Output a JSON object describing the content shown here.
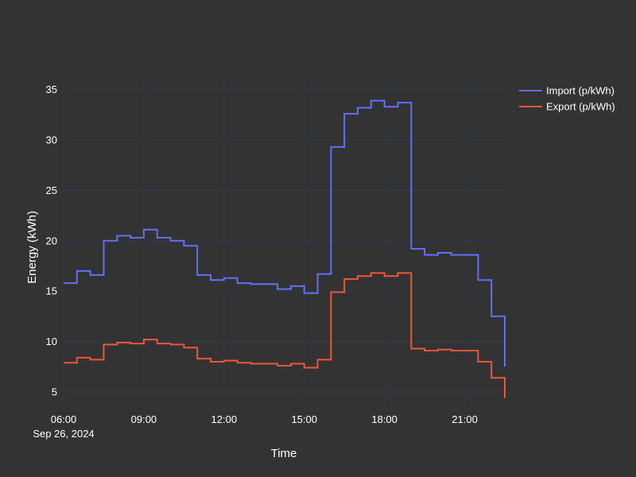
{
  "chart_data": {
    "type": "line",
    "line_shape": "step",
    "xlabel": "Time",
    "ylabel": "Energy (kWh)",
    "x_range": [
      "2024-09-26 06:00",
      "2024-09-26 22:30"
    ],
    "ylim": [
      3.5,
      36
    ],
    "x_ticks": [
      {
        "t": "2024-09-26 06:00",
        "label": "06:00",
        "sublabel": "Sep 26, 2024"
      },
      {
        "t": "2024-09-26 09:00",
        "label": "09:00"
      },
      {
        "t": "2024-09-26 12:00",
        "label": "12:00"
      },
      {
        "t": "2024-09-26 15:00",
        "label": "15:00"
      },
      {
        "t": "2024-09-26 18:00",
        "label": "18:00"
      },
      {
        "t": "2024-09-26 21:00",
        "label": "21:00"
      }
    ],
    "y_ticks": [
      5,
      10,
      15,
      20,
      25,
      30,
      35
    ],
    "grid": true,
    "legend": "top-right",
    "x": [
      "06:00",
      "06:30",
      "07:00",
      "07:30",
      "08:00",
      "08:30",
      "09:00",
      "09:30",
      "10:00",
      "10:30",
      "11:00",
      "11:30",
      "12:00",
      "12:30",
      "13:00",
      "13:30",
      "14:00",
      "14:30",
      "15:00",
      "15:30",
      "16:00",
      "16:30",
      "17:00",
      "17:30",
      "18:00",
      "18:30",
      "19:00",
      "19:30",
      "20:00",
      "20:30",
      "21:00",
      "21:30",
      "22:00",
      "22:30"
    ],
    "series": [
      {
        "name": "Import (p/kWh)",
        "color": "#636efa",
        "values": [
          15.8,
          17.0,
          16.6,
          20.0,
          20.5,
          20.3,
          21.1,
          20.3,
          20.0,
          19.5,
          16.6,
          16.1,
          16.3,
          15.8,
          15.7,
          15.7,
          15.2,
          15.5,
          14.8,
          16.7,
          29.3,
          32.6,
          33.2,
          33.9,
          33.3,
          33.7,
          19.2,
          18.6,
          18.8,
          18.6,
          18.6,
          16.1,
          12.5,
          7.5
        ]
      },
      {
        "name": "Export (p/kWh)",
        "color": "#ef553b",
        "values": [
          7.9,
          8.4,
          8.2,
          9.7,
          9.9,
          9.8,
          10.2,
          9.8,
          9.7,
          9.4,
          8.3,
          8.0,
          8.1,
          7.9,
          7.8,
          7.8,
          7.6,
          7.8,
          7.4,
          8.2,
          14.9,
          16.2,
          16.5,
          16.8,
          16.5,
          16.8,
          9.3,
          9.1,
          9.2,
          9.1,
          9.1,
          8.0,
          6.4,
          4.4
        ]
      }
    ]
  }
}
